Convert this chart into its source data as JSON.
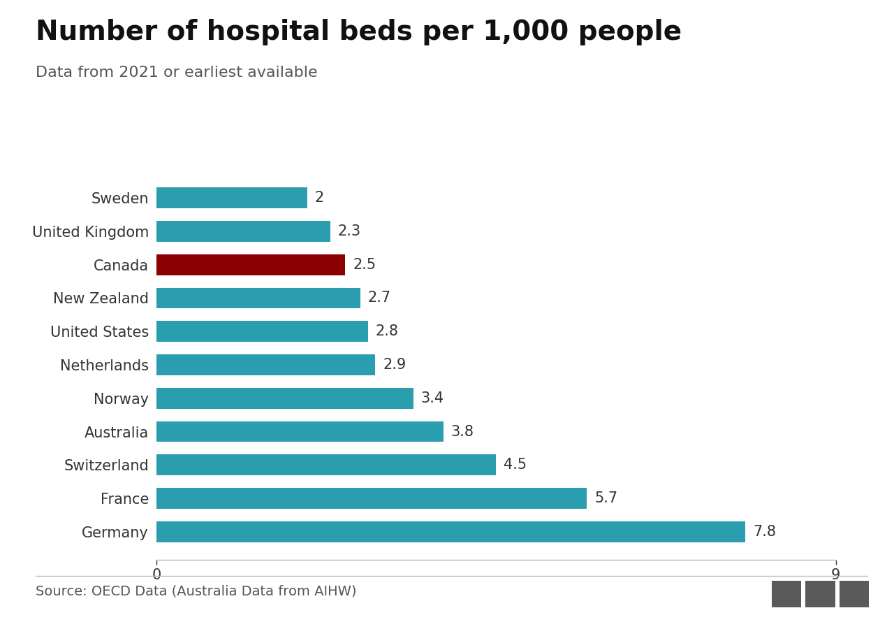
{
  "title": "Number of hospital beds per 1,000 people",
  "subtitle": "Data from 2021 or earliest available",
  "source": "Source: OECD Data (Australia Data from AIHW)",
  "countries": [
    "Sweden",
    "United Kingdom",
    "Canada",
    "New Zealand",
    "United States",
    "Netherlands",
    "Norway",
    "Australia",
    "Switzerland",
    "France",
    "Germany"
  ],
  "values": [
    2.0,
    2.3,
    2.5,
    2.7,
    2.8,
    2.9,
    3.4,
    3.8,
    4.5,
    5.7,
    7.8
  ],
  "value_labels": [
    "2",
    "2.3",
    "2.5",
    "2.7",
    "2.8",
    "2.9",
    "3.4",
    "3.8",
    "4.5",
    "5.7",
    "7.8"
  ],
  "colors": [
    "#2a9daf",
    "#2a9daf",
    "#8b0000",
    "#2a9daf",
    "#2a9daf",
    "#2a9daf",
    "#2a9daf",
    "#2a9daf",
    "#2a9daf",
    "#2a9daf",
    "#2a9daf"
  ],
  "xlim": [
    0,
    9
  ],
  "xticks": [
    0,
    9
  ],
  "background_color": "#ffffff",
  "bar_height": 0.62,
  "title_fontsize": 28,
  "subtitle_fontsize": 16,
  "value_fontsize": 15,
  "source_fontsize": 14,
  "tick_fontsize": 15,
  "country_fontsize": 15,
  "bar_color_default": "#2a9daf",
  "bar_color_highlight": "#8b0000",
  "text_color": "#333333",
  "subtle_color": "#666666",
  "separator_color": "#bbbbbb"
}
